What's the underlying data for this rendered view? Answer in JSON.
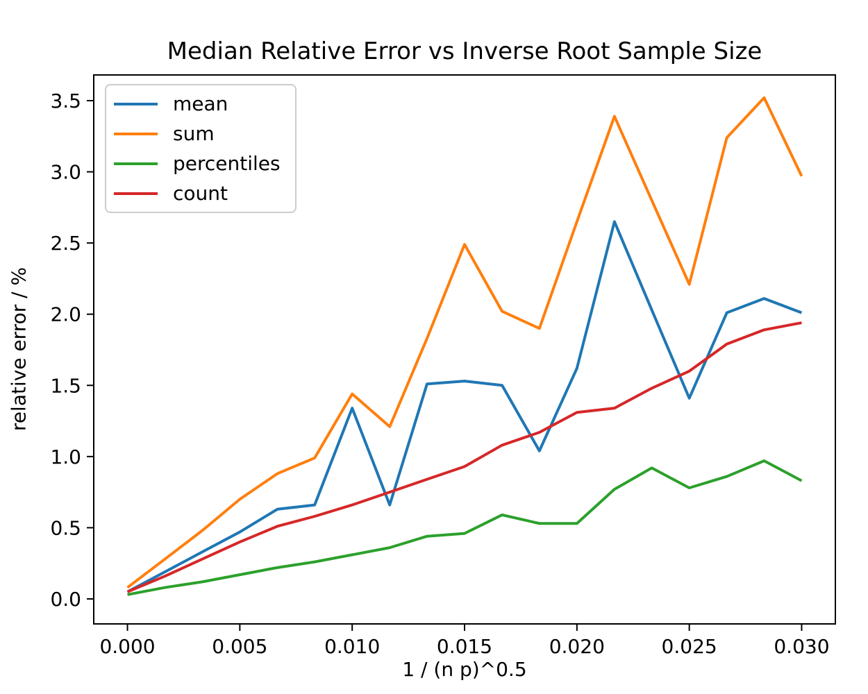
{
  "window": {
    "background": "#ffffff"
  },
  "axes": {
    "xlabel": "1 / (n p)^0.5",
    "ylabel": "relative error / %",
    "xlim": [
      -0.0015,
      0.0315
    ],
    "ylim": [
      -0.1756,
      3.6805
    ],
    "spine_color": "#000000",
    "tick_color": "#000000",
    "x_ticks": {
      "values": [
        0.0,
        0.005,
        0.01,
        0.015,
        0.02,
        0.025,
        0.03
      ],
      "labels": [
        "0.000",
        "0.005",
        "0.010",
        "0.015",
        "0.020",
        "0.025",
        "0.030"
      ]
    },
    "y_ticks": {
      "values": [
        0.0,
        0.5,
        1.0,
        1.5,
        2.0,
        2.5,
        3.0,
        3.5
      ],
      "labels": [
        "0.0",
        "0.5",
        "1.0",
        "1.5",
        "2.0",
        "2.5",
        "3.0",
        "3.5"
      ]
    }
  },
  "chart_data": {
    "type": "line",
    "title": "Median Relative Error vs Inverse Root Sample Size",
    "xlabel": "1 / (n p)^0.5",
    "ylabel": "relative error / %",
    "grid": false,
    "legend_position": "upper left",
    "x": [
      0.0,
      0.00167,
      0.00333,
      0.005,
      0.00667,
      0.00833,
      0.01,
      0.01167,
      0.01333,
      0.015,
      0.01667,
      0.01833,
      0.02,
      0.02167,
      0.02333,
      0.025,
      0.02667,
      0.02833,
      0.03
    ],
    "series": [
      {
        "name": "mean",
        "color": "#1f77b4",
        "values": [
          0.05,
          0.19,
          0.33,
          0.47,
          0.63,
          0.66,
          1.34,
          0.66,
          1.51,
          1.53,
          1.5,
          1.04,
          1.62,
          2.65,
          2.03,
          1.41,
          2.01,
          2.11,
          2.01
        ]
      },
      {
        "name": "sum",
        "color": "#ff7f0e",
        "values": [
          0.08,
          0.28,
          0.48,
          0.7,
          0.88,
          0.99,
          1.44,
          1.21,
          1.83,
          2.49,
          2.02,
          1.9,
          2.65,
          3.39,
          2.8,
          2.21,
          3.24,
          3.52,
          2.97
        ]
      },
      {
        "name": "percentiles",
        "color": "#2ca02c",
        "values": [
          0.03,
          0.08,
          0.12,
          0.17,
          0.22,
          0.26,
          0.31,
          0.36,
          0.44,
          0.46,
          0.59,
          0.53,
          0.53,
          0.77,
          0.92,
          0.78,
          0.86,
          0.97,
          0.83
        ]
      },
      {
        "name": "count",
        "color": "#d62728",
        "values": [
          0.05,
          0.16,
          0.28,
          0.4,
          0.51,
          0.58,
          0.66,
          0.75,
          0.84,
          0.93,
          1.08,
          1.17,
          1.31,
          1.34,
          1.48,
          1.6,
          1.79,
          1.89,
          1.94
        ]
      }
    ]
  }
}
